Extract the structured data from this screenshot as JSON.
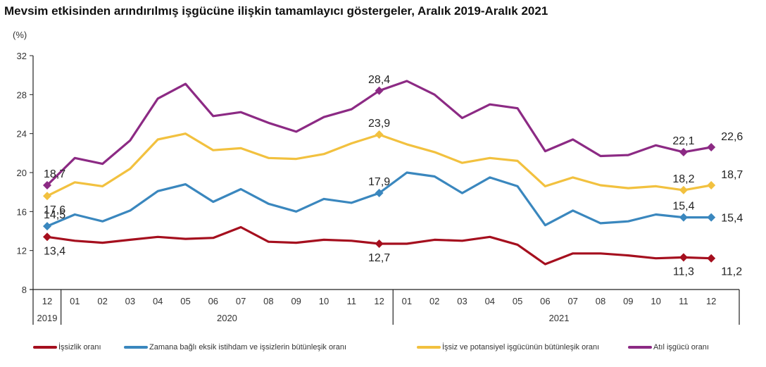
{
  "chart_data": {
    "type": "line",
    "title": "Mevsim etkisinden arındırılmış işgücüne ilişkin tamamlayıcı göstergeler, Aralık 2019-Aralık 2021",
    "ylabel": "(%)",
    "xlabel": "",
    "ylim": [
      8,
      32
    ],
    "yticks": [
      "8",
      "12",
      "16",
      "20",
      "24",
      "28",
      "32"
    ],
    "ytick_values": [
      8,
      12,
      16,
      20,
      24,
      28,
      32
    ],
    "grid": false,
    "legend_position": "bottom",
    "categories": [
      "12",
      "01",
      "02",
      "03",
      "04",
      "05",
      "06",
      "07",
      "08",
      "09",
      "10",
      "11",
      "12",
      "01",
      "02",
      "03",
      "04",
      "05",
      "06",
      "07",
      "08",
      "09",
      "10",
      "11",
      "12"
    ],
    "year_groups": [
      {
        "label": "2019",
        "start": 0,
        "end": 0
      },
      {
        "label": "2020",
        "start": 1,
        "end": 12
      },
      {
        "label": "2021",
        "start": 13,
        "end": 24
      }
    ],
    "series": [
      {
        "name": "İşsizlik oranı",
        "color": "#A50F1E",
        "values": [
          13.4,
          13.0,
          12.8,
          13.1,
          13.4,
          13.2,
          13.3,
          14.4,
          12.9,
          12.8,
          13.1,
          13.0,
          12.7,
          12.7,
          13.1,
          13.0,
          13.4,
          12.6,
          10.6,
          11.7,
          11.7,
          11.5,
          11.2,
          11.3,
          11.2
        ],
        "labels": [
          {
            "index": 0,
            "text": "13,4",
            "pos": "below"
          },
          {
            "index": 12,
            "text": "12,7",
            "pos": "below"
          },
          {
            "index": 23,
            "text": "11,3",
            "pos": "below"
          },
          {
            "index": 24,
            "text": "11,2",
            "pos": "below-right"
          }
        ]
      },
      {
        "name": "Zamana bağlı eksik istihdam ve işsizlerin bütünleşik oranı",
        "color": "#3A87BE",
        "values": [
          14.5,
          15.7,
          15.0,
          16.1,
          18.1,
          18.8,
          17.0,
          18.3,
          16.8,
          16.0,
          17.3,
          16.9,
          17.9,
          20.0,
          19.6,
          17.9,
          19.5,
          18.6,
          14.6,
          16.1,
          14.8,
          15.0,
          15.7,
          15.4,
          15.4
        ],
        "labels": [
          {
            "index": 0,
            "text": "14,5",
            "pos": "above"
          },
          {
            "index": 12,
            "text": "17,9",
            "pos": "above"
          },
          {
            "index": 23,
            "text": "15,4",
            "pos": "above"
          },
          {
            "index": 24,
            "text": "15,4",
            "pos": "right"
          }
        ]
      },
      {
        "name": "İşsiz ve potansiyel işgücünün bütünleşik oranı",
        "color": "#F2C13F",
        "values": [
          17.6,
          19.0,
          18.6,
          20.4,
          23.4,
          24.0,
          22.3,
          22.5,
          21.5,
          21.4,
          21.9,
          23.0,
          23.9,
          22.9,
          22.1,
          21.0,
          21.5,
          21.2,
          18.6,
          19.5,
          18.7,
          18.4,
          18.6,
          18.2,
          18.7
        ],
        "labels": [
          {
            "index": 0,
            "text": "17,6",
            "pos": "below"
          },
          {
            "index": 12,
            "text": "23,9",
            "pos": "above"
          },
          {
            "index": 23,
            "text": "18,2",
            "pos": "above"
          },
          {
            "index": 24,
            "text": "18,7",
            "pos": "above-right"
          }
        ]
      },
      {
        "name": "Atıl işgücü oranı",
        "color": "#8C2A84",
        "values": [
          18.7,
          21.5,
          20.9,
          23.3,
          27.6,
          29.1,
          25.8,
          26.2,
          25.1,
          24.2,
          25.7,
          26.5,
          28.4,
          29.4,
          28.0,
          25.6,
          27.0,
          26.6,
          22.2,
          23.4,
          21.7,
          21.8,
          22.8,
          22.1,
          22.6
        ],
        "labels": [
          {
            "index": 0,
            "text": "18,7",
            "pos": "above"
          },
          {
            "index": 12,
            "text": "28,4",
            "pos": "above"
          },
          {
            "index": 23,
            "text": "22,1",
            "pos": "above"
          },
          {
            "index": 24,
            "text": "22,6",
            "pos": "above-right"
          }
        ]
      }
    ]
  }
}
